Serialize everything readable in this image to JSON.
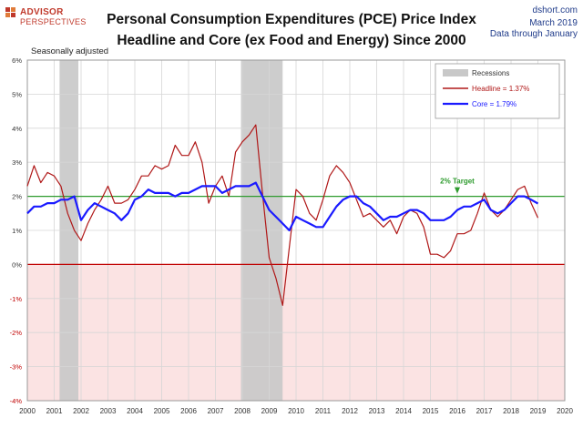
{
  "header": {
    "logo_line1": "ADVISOR",
    "logo_line2": "PERSPECTIVES",
    "title_line1": "Personal Consumption Expenditures (PCE) Price Index",
    "title_line2": "Headline and Core (ex Food and Energy) Since 2000",
    "source_line1": "dshort.com",
    "source_line2": "March 2019",
    "source_line3": "Data through January",
    "note": "Seasonally adjusted"
  },
  "colors": {
    "headline": "#b01818",
    "core": "#1a1aff",
    "target": "#2e9b2e",
    "negative_band": "#fbe3e3",
    "recession": "#c8c8c8"
  },
  "chart_data": {
    "type": "line",
    "title": "Personal Consumption Expenditures (PCE) Price Index",
    "subtitle": "Headline and Core (ex Food and Energy) Since 2000",
    "xlim": [
      2000,
      2020
    ],
    "ylim": [
      -4,
      6
    ],
    "yticks": [
      -4,
      -3,
      -2,
      -1,
      0,
      1,
      2,
      3,
      4,
      5,
      6
    ],
    "ytick_labels": [
      "-4%",
      "-3%",
      "-2%",
      "-1%",
      "0%",
      "1%",
      "2%",
      "3%",
      "4%",
      "5%",
      "6%"
    ],
    "xticks": [
      2000,
      2001,
      2002,
      2003,
      2004,
      2005,
      2006,
      2007,
      2008,
      2009,
      2010,
      2011,
      2012,
      2013,
      2014,
      2015,
      2016,
      2017,
      2018,
      2019,
      2020
    ],
    "xtick_labels": [
      "2000",
      "2001",
      "2002",
      "2003",
      "2004",
      "2005",
      "2006",
      "2007",
      "2008",
      "2009",
      "2010",
      "2011",
      "2012",
      "2013",
      "2014",
      "2015",
      "2016",
      "2017",
      "2018",
      "2019",
      "2020"
    ],
    "grid": true,
    "legend_position": "top-right",
    "recessions": [
      [
        2001.2,
        2001.9
      ],
      [
        2007.95,
        2009.5
      ]
    ],
    "target": {
      "value": 2,
      "label": "2% Target"
    },
    "legend": {
      "recessions_label": "Recessions",
      "headline_label": "Headline = 1.37%",
      "core_label": "Core = 1.79%"
    },
    "series": [
      {
        "name": "Headline",
        "x": [
          2000,
          2000.25,
          2000.5,
          2000.75,
          2001,
          2001.25,
          2001.5,
          2001.75,
          2002,
          2002.25,
          2002.5,
          2002.75,
          2003,
          2003.25,
          2003.5,
          2003.75,
          2004,
          2004.25,
          2004.5,
          2004.75,
          2005,
          2005.25,
          2005.5,
          2005.75,
          2006,
          2006.25,
          2006.5,
          2006.75,
          2007,
          2007.25,
          2007.5,
          2007.75,
          2008,
          2008.25,
          2008.5,
          2008.75,
          2009,
          2009.25,
          2009.5,
          2009.75,
          2010,
          2010.25,
          2010.5,
          2010.75,
          2011,
          2011.25,
          2011.5,
          2011.75,
          2012,
          2012.25,
          2012.5,
          2012.75,
          2013,
          2013.25,
          2013.5,
          2013.75,
          2014,
          2014.25,
          2014.5,
          2014.75,
          2015,
          2015.25,
          2015.5,
          2015.75,
          2016,
          2016.25,
          2016.5,
          2016.75,
          2017,
          2017.25,
          2017.5,
          2017.75,
          2018,
          2018.25,
          2018.5,
          2018.75,
          2019
        ],
        "values": [
          2.3,
          2.9,
          2.4,
          2.7,
          2.6,
          2.3,
          1.5,
          1.0,
          0.7,
          1.2,
          1.6,
          1.9,
          2.3,
          1.8,
          1.8,
          1.9,
          2.2,
          2.6,
          2.6,
          2.9,
          2.8,
          2.9,
          3.5,
          3.2,
          3.2,
          3.6,
          3.0,
          1.8,
          2.3,
          2.6,
          2.0,
          3.3,
          3.6,
          3.8,
          4.1,
          2.1,
          0.2,
          -0.4,
          -1.2,
          0.5,
          2.2,
          2.0,
          1.5,
          1.3,
          1.9,
          2.6,
          2.9,
          2.7,
          2.4,
          1.9,
          1.4,
          1.5,
          1.3,
          1.1,
          1.3,
          0.9,
          1.4,
          1.6,
          1.5,
          1.1,
          0.3,
          0.3,
          0.2,
          0.4,
          0.9,
          0.9,
          1.0,
          1.5,
          2.1,
          1.6,
          1.4,
          1.6,
          1.9,
          2.2,
          2.3,
          1.8,
          1.37
        ]
      },
      {
        "name": "Core",
        "x": [
          2000,
          2000.25,
          2000.5,
          2000.75,
          2001,
          2001.25,
          2001.5,
          2001.75,
          2002,
          2002.25,
          2002.5,
          2002.75,
          2003,
          2003.25,
          2003.5,
          2003.75,
          2004,
          2004.25,
          2004.5,
          2004.75,
          2005,
          2005.25,
          2005.5,
          2005.75,
          2006,
          2006.25,
          2006.5,
          2006.75,
          2007,
          2007.25,
          2007.5,
          2007.75,
          2008,
          2008.25,
          2008.5,
          2008.75,
          2009,
          2009.25,
          2009.5,
          2009.75,
          2010,
          2010.25,
          2010.5,
          2010.75,
          2011,
          2011.25,
          2011.5,
          2011.75,
          2012,
          2012.25,
          2012.5,
          2012.75,
          2013,
          2013.25,
          2013.5,
          2013.75,
          2014,
          2014.25,
          2014.5,
          2014.75,
          2015,
          2015.25,
          2015.5,
          2015.75,
          2016,
          2016.25,
          2016.5,
          2016.75,
          2017,
          2017.25,
          2017.5,
          2017.75,
          2018,
          2018.25,
          2018.5,
          2018.75,
          2019
        ],
        "values": [
          1.5,
          1.7,
          1.7,
          1.8,
          1.8,
          1.9,
          1.9,
          2.0,
          1.3,
          1.6,
          1.8,
          1.7,
          1.6,
          1.5,
          1.3,
          1.5,
          1.9,
          2.0,
          2.2,
          2.1,
          2.1,
          2.1,
          2.0,
          2.1,
          2.1,
          2.2,
          2.3,
          2.3,
          2.3,
          2.1,
          2.2,
          2.3,
          2.3,
          2.3,
          2.4,
          2.0,
          1.6,
          1.4,
          1.2,
          1.0,
          1.4,
          1.3,
          1.2,
          1.1,
          1.1,
          1.4,
          1.7,
          1.9,
          2.0,
          2.0,
          1.8,
          1.7,
          1.5,
          1.3,
          1.4,
          1.4,
          1.5,
          1.6,
          1.6,
          1.5,
          1.3,
          1.3,
          1.3,
          1.4,
          1.6,
          1.7,
          1.7,
          1.8,
          1.9,
          1.6,
          1.5,
          1.6,
          1.8,
          2.0,
          2.0,
          1.9,
          1.79
        ]
      }
    ]
  }
}
